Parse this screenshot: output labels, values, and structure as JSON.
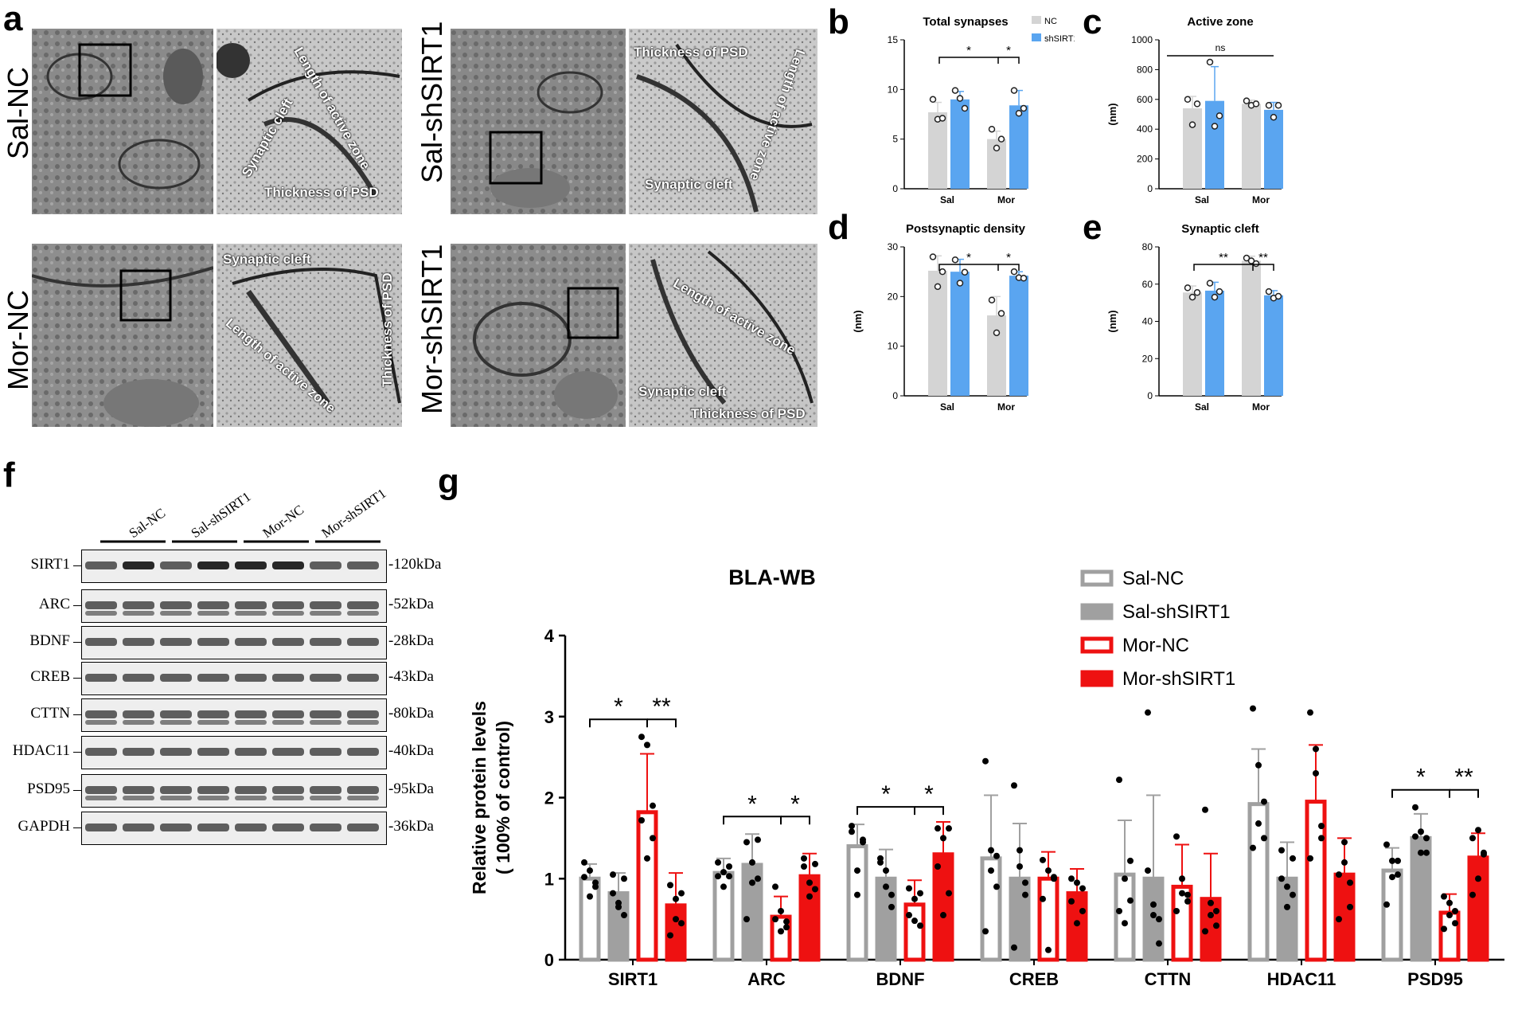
{
  "panels": {
    "a": "a",
    "b": "b",
    "c": "c",
    "d": "d",
    "e": "e",
    "f": "f",
    "g": "g"
  },
  "em_rows": [
    "Sal-NC",
    "Sal-shSIRT1",
    "Mor-NC",
    "Mor-shSIRT1"
  ],
  "em_annotations": {
    "cleft": "Synaptic cleft",
    "psd": "Thickness of PSD",
    "az": "Length of active zone"
  },
  "colors": {
    "nc": "#d4d4d4",
    "sh": "#5aa5f0",
    "grayfill": "#a0a0a0",
    "red": "#ee1111",
    "white": "#ffffff"
  },
  "small_charts": [
    {
      "id": "b",
      "type": "bar",
      "title": "Total synapses",
      "ylabel": "",
      "ylim": [
        0,
        15
      ],
      "yticks": [
        0,
        5,
        10,
        15
      ],
      "categories": [
        "Sal",
        "Mor"
      ],
      "series": [
        {
          "name": "NC",
          "values": [
            7.7,
            5.0
          ],
          "err": [
            1.0,
            0.8
          ],
          "points": [
            [
              9.0,
              7.0,
              7.1
            ],
            [
              6.0,
              4.1,
              5.0
            ]
          ]
        },
        {
          "name": "shSIRT1",
          "values": [
            9.0,
            8.4
          ],
          "err": [
            0.8,
            1.5
          ],
          "points": [
            [
              9.9,
              9.1,
              8.1
            ],
            [
              9.9,
              7.6,
              8.1
            ]
          ]
        }
      ],
      "legend": [
        "NC",
        "shSIRT1"
      ],
      "sig": [
        {
          "label": "*",
          "from": "Sal",
          "to": "Mor-NC"
        },
        {
          "label": "*",
          "from": "Mor-NC",
          "to": "Mor-sh"
        }
      ]
    },
    {
      "id": "c",
      "type": "bar",
      "title": "Active zone",
      "ylabel": "(nm)",
      "ylim": [
        0,
        1000
      ],
      "yticks": [
        0,
        200,
        400,
        600,
        800,
        1000
      ],
      "categories": [
        "Sal",
        "Mor"
      ],
      "series": [
        {
          "name": "NC",
          "values": [
            540,
            570
          ],
          "err": [
            80,
            25
          ],
          "points": [
            [
              600,
              430,
              570
            ],
            [
              590,
              560,
              570
            ]
          ]
        },
        {
          "name": "shSIRT1",
          "values": [
            590,
            530
          ],
          "err": [
            230,
            50
          ],
          "points": [
            [
              850,
              420,
              490
            ],
            [
              560,
              480,
              560
            ]
          ]
        }
      ],
      "sig": [
        {
          "label": "ns",
          "from": "all"
        }
      ]
    },
    {
      "id": "d",
      "type": "bar",
      "title": "Postsynaptic density",
      "ylabel": "(nm)",
      "ylim": [
        0,
        30
      ],
      "yticks": [
        0,
        10,
        20,
        30
      ],
      "categories": [
        "Sal",
        "Mor"
      ],
      "series": [
        {
          "name": "NC",
          "values": [
            25.2,
            16.2
          ],
          "err": [
            3.0,
            3.8
          ],
          "points": [
            [
              28.0,
              22.0,
              25.0
            ],
            [
              19.3,
              12.7,
              16.6
            ]
          ]
        },
        {
          "name": "shSIRT1",
          "values": [
            25.0,
            24.2
          ],
          "err": [
            2.5,
            0.8
          ],
          "points": [
            [
              27.4,
              22.7,
              24.9
            ],
            [
              25.0,
              23.8,
              23.7
            ]
          ]
        }
      ],
      "sig": [
        {
          "label": "*",
          "from": "Sal",
          "to": "Mor-NC"
        },
        {
          "label": "*",
          "from": "Mor-NC",
          "to": "Mor-sh"
        }
      ]
    },
    {
      "id": "e",
      "type": "bar",
      "title": "Synaptic cleft",
      "ylabel": "(nm)",
      "ylim": [
        0,
        80
      ],
      "yticks": [
        0,
        20,
        40,
        60,
        80
      ],
      "categories": [
        "Sal",
        "Mor"
      ],
      "series": [
        {
          "name": "NC",
          "values": [
            55.5,
            72.5
          ],
          "err": [
            3.5,
            2.5
          ],
          "points": [
            [
              58.0,
              53.0,
              55.5
            ],
            [
              74.0,
              72.5,
              71.0
            ]
          ]
        },
        {
          "name": "shSIRT1",
          "values": [
            56.5,
            54.0
          ],
          "err": [
            4.5,
            2.5
          ],
          "points": [
            [
              60.5,
              53.0,
              56.0
            ],
            [
              56.0,
              52.5,
              53.5
            ]
          ]
        }
      ],
      "sig": [
        {
          "label": "**",
          "from": "Sal",
          "to": "Mor-NC"
        },
        {
          "label": "**",
          "from": "Mor-NC",
          "to": "Mor-sh"
        }
      ]
    }
  ],
  "western_blot": {
    "groups": [
      "Sal-NC",
      "Sal-shSIRT1",
      "Mor-NC",
      "Mor-shSIRT1"
    ],
    "proteins": [
      {
        "name": "SIRT1",
        "kda": "120kDa"
      },
      {
        "name": "ARC",
        "kda": "52kDa"
      },
      {
        "name": "BDNF",
        "kda": "28kDa"
      },
      {
        "name": "CREB",
        "kda": "43kDa"
      },
      {
        "name": "CTTN",
        "kda": "80kDa"
      },
      {
        "name": "HDAC11",
        "kda": "40kDa"
      },
      {
        "name": "PSD95",
        "kda": "95kDa"
      },
      {
        "name": "GAPDH",
        "kda": "36kDa"
      }
    ]
  },
  "chart_data": {
    "type": "bar",
    "title": "BLA-WB",
    "ylabel": "Relative protein levels\n( 100% of control)",
    "ylim": [
      0,
      4
    ],
    "yticks": [
      0,
      1,
      2,
      3,
      4
    ],
    "categories": [
      "SIRT1",
      "ARC",
      "BDNF",
      "CREB",
      "CTTN",
      "HDAC11",
      "PSD95"
    ],
    "series": [
      {
        "name": "Sal-NC",
        "style": "open-gray",
        "values": [
          1.0,
          1.07,
          1.4,
          1.25,
          1.05,
          1.92,
          1.1
        ],
        "err": [
          0.18,
          0.18,
          0.27,
          0.78,
          0.67,
          0.68,
          0.28
        ],
        "points": [
          [
            1.2,
            0.78,
            0.9,
            1.02,
            1.1,
            0.95
          ],
          [
            1.2,
            0.9,
            1.03,
            1.03,
            1.08,
            1.15
          ],
          [
            1.65,
            1.1,
            1.48,
            1.58,
            0.8,
            1.45
          ],
          [
            2.45,
            1.35,
            0.9,
            0.35,
            1.1,
            1.28
          ],
          [
            2.22,
            0.45,
            0.73,
            0.6,
            1.0,
            1.22
          ],
          [
            3.1,
            2.4,
            1.95,
            1.38,
            1.68,
            1.5
          ],
          [
            1.42,
            1.22,
            1.05,
            0.68,
            1.02,
            1.22
          ]
        ]
      },
      {
        "name": "Sal-shSIRT1",
        "style": "filled-gray",
        "values": [
          0.82,
          1.17,
          1.0,
          1.0,
          1.0,
          1.0,
          1.5
        ],
        "err": [
          0.25,
          0.38,
          0.36,
          0.68,
          1.03,
          0.45,
          0.3
        ],
        "points": [
          [
            1.05,
            0.65,
            0.55,
            0.82,
            0.7,
            1.0
          ],
          [
            1.45,
            0.95,
            1.48,
            0.5,
            1.2,
            1.0
          ],
          [
            1.25,
            0.9,
            0.65,
            1.2,
            1.1,
            0.8
          ],
          [
            2.15,
            1.35,
            0.8,
            0.15,
            1.15,
            0.95
          ],
          [
            3.05,
            0.55,
            0.2,
            1.1,
            0.68,
            0.5
          ],
          [
            1.35,
            0.9,
            0.8,
            1.0,
            0.65,
            1.25
          ],
          [
            1.88,
            1.58,
            1.32,
            1.52,
            1.32,
            1.5
          ]
        ]
      },
      {
        "name": "Mor-NC",
        "style": "open-red",
        "values": [
          1.82,
          0.53,
          0.68,
          1.0,
          0.9,
          1.95,
          0.58
        ],
        "err": [
          0.72,
          0.25,
          0.3,
          0.33,
          0.52,
          0.7,
          0.23
        ],
        "points": [
          [
            2.75,
            2.65,
            1.9,
            1.72,
            1.25,
            1.5
          ],
          [
            0.9,
            0.6,
            0.4,
            0.5,
            0.35,
            0.47
          ],
          [
            0.88,
            0.75,
            0.42,
            0.55,
            0.48,
            0.82
          ],
          [
            1.23,
            1.1,
            1.02,
            0.75,
            0.12,
            1.0
          ],
          [
            1.52,
            1.0,
            0.8,
            0.6,
            0.82,
            0.72
          ],
          [
            3.05,
            2.6,
            1.65,
            1.25,
            2.3,
            1.5
          ],
          [
            0.78,
            0.7,
            0.45,
            0.38,
            0.55,
            0.6
          ]
        ]
      },
      {
        "name": "Mor-shSIRT1",
        "style": "filled-red",
        "values": [
          0.67,
          1.03,
          1.3,
          0.82,
          0.75,
          1.05,
          1.26
        ],
        "err": [
          0.4,
          0.28,
          0.4,
          0.3,
          0.56,
          0.45,
          0.3
        ],
        "points": [
          [
            0.92,
            0.5,
            0.82,
            0.3,
            0.75,
            0.45
          ],
          [
            1.25,
            0.95,
            0.87,
            1.15,
            0.78,
            1.18
          ],
          [
            1.62,
            1.5,
            0.82,
            1.15,
            0.55,
            1.62
          ],
          [
            1.0,
            0.95,
            0.6,
            0.72,
            0.45,
            0.88
          ],
          [
            1.85,
            0.7,
            0.42,
            0.35,
            0.55,
            0.6
          ],
          [
            1.05,
            1.2,
            0.65,
            0.5,
            1.45,
            0.95
          ],
          [
            1.5,
            1.0,
            1.3,
            0.8,
            1.6,
            1.32
          ]
        ]
      }
    ],
    "legend": [
      "Sal-NC",
      "Sal-shSIRT1",
      "Mor-NC",
      "Mor-shSIRT1"
    ],
    "legend_position": "top-right",
    "significance": [
      {
        "category": "SIRT1",
        "pairs": [
          {
            "label": "*",
            "between": [
              "Sal-NC",
              "Mor-NC"
            ]
          },
          {
            "label": "**",
            "between": [
              "Mor-NC",
              "Mor-shSIRT1"
            ]
          }
        ]
      },
      {
        "category": "ARC",
        "pairs": [
          {
            "label": "*",
            "between": [
              "Sal-NC",
              "Mor-NC"
            ]
          },
          {
            "label": "*",
            "between": [
              "Mor-NC",
              "Mor-shSIRT1"
            ]
          }
        ]
      },
      {
        "category": "BDNF",
        "pairs": [
          {
            "label": "*",
            "between": [
              "Sal-NC",
              "Mor-NC"
            ]
          },
          {
            "label": "*",
            "between": [
              "Mor-NC",
              "Mor-shSIRT1"
            ]
          }
        ]
      },
      {
        "category": "PSD95",
        "pairs": [
          {
            "label": "*",
            "between": [
              "Sal-NC",
              "Mor-NC"
            ]
          },
          {
            "label": "**",
            "between": [
              "Mor-NC",
              "Mor-shSIRT1"
            ]
          }
        ]
      }
    ]
  }
}
